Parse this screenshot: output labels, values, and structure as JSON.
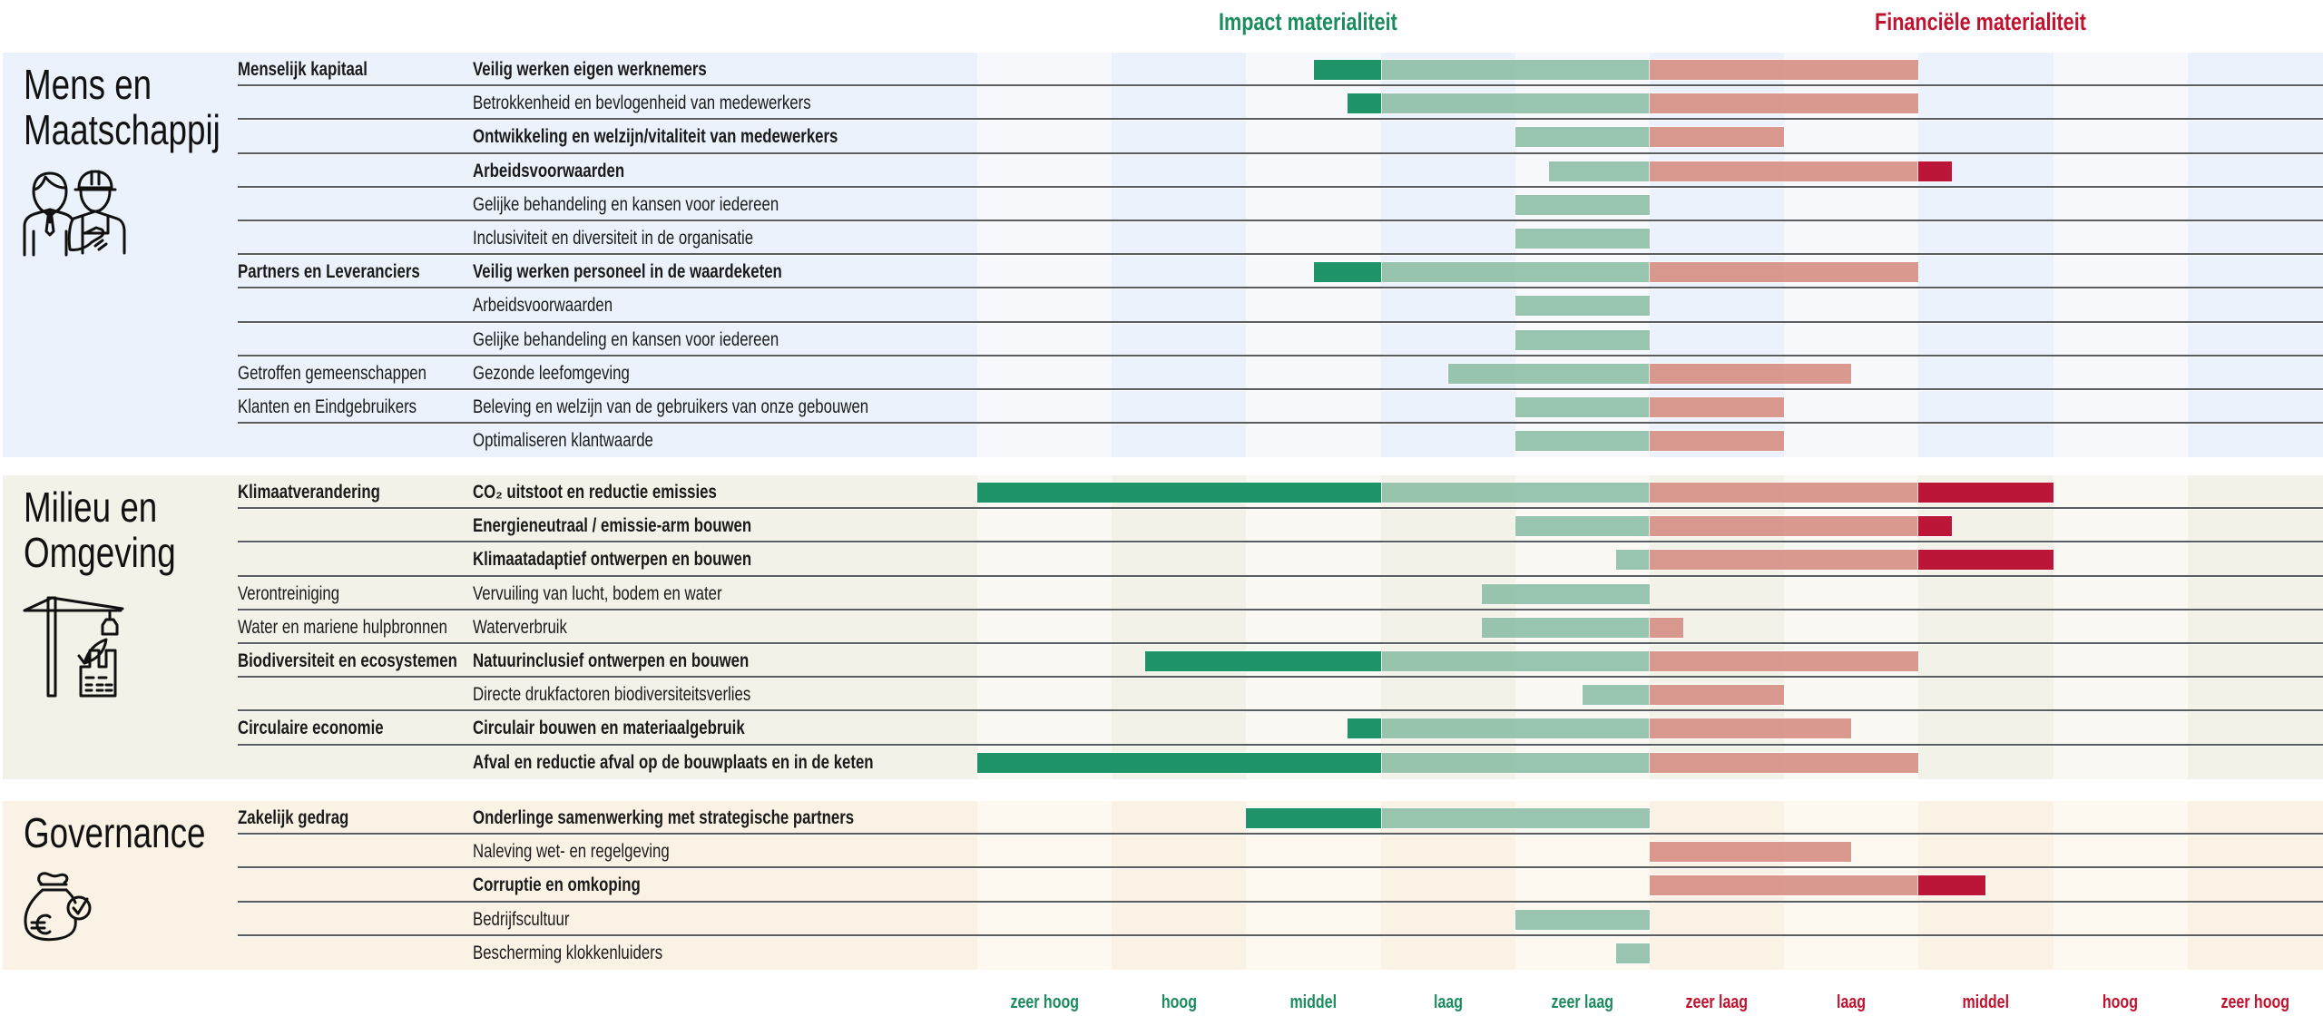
{
  "headers": {
    "impact": "Impact materialiteit",
    "financial": "Financiële materialiteit"
  },
  "colors": {
    "impact_text": "#1a8c5e",
    "financial_text": "#c0122f",
    "impact_light": "#96c3ad",
    "impact_dark": "#1e9468",
    "financial_light": "#d9968b",
    "financial_dark": "#bb1638"
  },
  "axis_labels": {
    "impact": [
      "zeer hoog",
      "hoog",
      "middel",
      "laag",
      "zeer laag"
    ],
    "financial": [
      "zeer laag",
      "laag",
      "middel",
      "hoog",
      "zeer hoog"
    ]
  },
  "sections": [
    {
      "title_line1": "Mens en",
      "title_line2": "Maatschappij",
      "icon": "people-handshake-icon",
      "band_light": "#f6f8fc",
      "band_dark": "#ebf2fb",
      "rows": [
        {
          "category": "Menselijk kapitaal",
          "category_bold": true,
          "topic": "Veilig werken eigen werknemers",
          "topic_bold": true
        },
        {
          "category": "",
          "category_bold": false,
          "topic": "Betrokkenheid en bevlogenheid van medewerkers",
          "topic_bold": false
        },
        {
          "category": "",
          "category_bold": false,
          "topic": "Ontwikkeling en welzijn/vitaliteit van medewerkers",
          "topic_bold": true
        },
        {
          "category": "",
          "category_bold": false,
          "topic": "Arbeidsvoorwaarden",
          "topic_bold": true
        },
        {
          "category": "",
          "category_bold": false,
          "topic": "Gelijke behandeling en kansen voor iedereen",
          "topic_bold": false
        },
        {
          "category": "",
          "category_bold": false,
          "topic": "Inclusiviteit en diversiteit in de organisatie",
          "topic_bold": false
        },
        {
          "category": "Partners en Leveranciers",
          "category_bold": true,
          "topic": "Veilig werken personeel in de waardeketen",
          "topic_bold": true
        },
        {
          "category": "",
          "category_bold": false,
          "topic": "Arbeidsvoorwaarden",
          "topic_bold": false
        },
        {
          "category": "",
          "category_bold": false,
          "topic": "Gelijke behandeling en kansen voor iedereen",
          "topic_bold": false
        },
        {
          "category": "Getroffen gemeenschappen",
          "category_bold": false,
          "topic": "Gezonde leefomgeving",
          "topic_bold": false
        },
        {
          "category": "Klanten en Eindgebruikers",
          "category_bold": false,
          "topic": "Beleving en welzijn van de gebruikers van onze gebouwen",
          "topic_bold": false
        },
        {
          "category": "",
          "category_bold": false,
          "topic": "Optimaliseren klantwaarde",
          "topic_bold": false
        }
      ]
    },
    {
      "title_line1": "Milieu en",
      "title_line2": "Omgeving",
      "icon": "crane-building-leaf-icon",
      "band_light": "#f9f8f2",
      "band_dark": "#f2f2e8",
      "rows": [
        {
          "category": "Klimaatverandering",
          "category_bold": true,
          "topic": "CO₂ uitstoot en reductie emissies",
          "topic_bold": true
        },
        {
          "category": "",
          "category_bold": false,
          "topic": "Energieneutraal / emissie-arm bouwen",
          "topic_bold": true
        },
        {
          "category": "",
          "category_bold": false,
          "topic": "Klimaatadaptief ontwerpen en bouwen",
          "topic_bold": true
        },
        {
          "category": "Verontreiniging",
          "category_bold": false,
          "topic": "Vervuiling van lucht, bodem en water",
          "topic_bold": false
        },
        {
          "category": "Water en mariene hulpbronnen",
          "category_bold": false,
          "topic": "Waterverbruik",
          "topic_bold": false
        },
        {
          "category": "Biodiversiteit en ecosystemen",
          "category_bold": true,
          "topic": "Natuurinclusief ontwerpen en bouwen",
          "topic_bold": true
        },
        {
          "category": "",
          "category_bold": false,
          "topic": "Directe drukfactoren biodiversiteitsverlies",
          "topic_bold": false
        },
        {
          "category": "Circulaire economie",
          "category_bold": true,
          "topic": "Circulair bouwen en materiaalgebruik",
          "topic_bold": true
        },
        {
          "category": "",
          "category_bold": false,
          "topic": "Afval en reductie afval op de bouwplaats en in de keten",
          "topic_bold": true
        }
      ]
    },
    {
      "title_line1": "Governance",
      "title_line2": "",
      "icon": "money-bag-euro-check-icon",
      "band_light": "#fdf9f1",
      "band_dark": "#fbf2e6",
      "rows": [
        {
          "category": "Zakelijk gedrag",
          "category_bold": true,
          "topic": "Onderlinge samenwerking met strategische partners",
          "topic_bold": true
        },
        {
          "category": "",
          "category_bold": false,
          "topic": "Naleving wet- en regelgeving",
          "topic_bold": false
        },
        {
          "category": "",
          "category_bold": false,
          "topic": "Corruptie en omkoping",
          "topic_bold": true
        },
        {
          "category": "",
          "category_bold": false,
          "topic": "Bedrijfscultuur",
          "topic_bold": false
        },
        {
          "category": "",
          "category_bold": false,
          "topic": "Bescherming klokkenluiders",
          "topic_bold": false
        }
      ]
    }
  ],
  "chart_data": {
    "type": "bar",
    "subtype": "diverging-horizontal",
    "title": "",
    "series": [
      {
        "name": "Impact materialiteit",
        "direction": "left"
      },
      {
        "name": "Financiële materialiteit",
        "direction": "right"
      }
    ],
    "scale_note": "Value in levels from center; 1 = zeer laag, 2 = laag, 3 = middel, 4 = hoog, 5 = zeer hoog. Portion beyond level 2 shown in dark color.",
    "xlim": [
      0,
      5
    ],
    "dark_threshold": 2,
    "tick_labels_impact": [
      "zeer hoog",
      "hoog",
      "middel",
      "laag",
      "zeer laag"
    ],
    "tick_labels_financial": [
      "zeer laag",
      "laag",
      "middel",
      "hoog",
      "zeer hoog"
    ],
    "legend": "top",
    "grid": "alternating column bands",
    "categories": [
      "Veilig werken eigen werknemers",
      "Betrokkenheid en bevlogenheid van medewerkers",
      "Ontwikkeling en welzijn/vitaliteit van medewerkers",
      "Arbeidsvoorwaarden",
      "Gelijke behandeling en kansen voor iedereen",
      "Inclusiviteit en diversiteit in de organisatie",
      "Veilig werken personeel in de waardeketen",
      "Arbeidsvoorwaarden",
      "Gelijke behandeling en kansen voor iedereen",
      "Gezonde leefomgeving",
      "Beleving en welzijn van de gebruikers van onze gebouwen",
      "Optimaliseren klantwaarde",
      "CO₂ uitstoot en reductie emissies",
      "Energieneutraal / emissie-arm bouwen",
      "Klimaatadaptief ontwerpen en bouwen",
      "Vervuiling van lucht, bodem en water",
      "Waterverbruik",
      "Natuurinclusief ontwerpen en bouwen",
      "Directe drukfactoren biodiversiteitsverlies",
      "Circulair bouwen en materiaalgebruik",
      "Afval en reductie afval op de bouwplaats en in de keten",
      "Onderlinge samenwerking met strategische partners",
      "Naleving wet- en regelgeving",
      "Corruptie en omkoping",
      "Bedrijfscultuur",
      "Bescherming klokkenluiders"
    ],
    "impact": [
      2.5,
      2.25,
      1,
      0.75,
      1,
      1,
      2.5,
      1,
      1,
      1.5,
      1,
      1,
      5,
      1,
      0.25,
      1.25,
      1.25,
      3.75,
      0.5,
      2.25,
      5,
      3,
      0,
      0,
      1,
      0.25
    ],
    "financial": [
      2,
      2,
      1,
      2.25,
      0,
      0,
      2,
      0,
      0,
      1.5,
      1,
      1,
      3,
      2.25,
      3,
      0,
      0.25,
      2,
      1,
      1.5,
      2,
      0,
      1.5,
      2.5,
      0,
      0
    ]
  }
}
